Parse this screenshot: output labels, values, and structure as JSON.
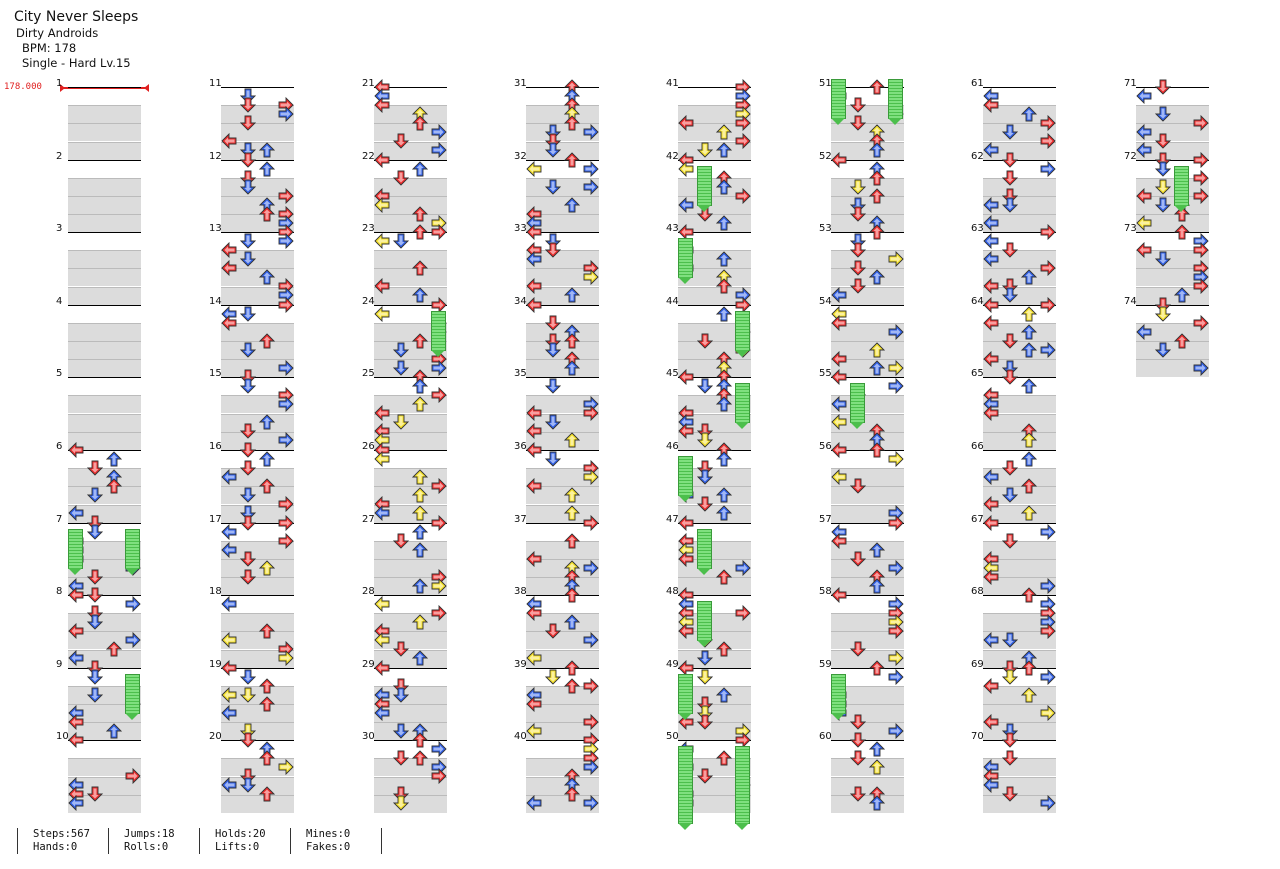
{
  "song": {
    "title": "City Never Sleeps",
    "artist": "Dirty Androids",
    "bpm_label": "BPM: 178",
    "difficulty_label": "Single - Hard  Lv.15"
  },
  "bpm_marker": "178.000",
  "colors": {
    "quarter": "#ee2b2b",
    "eighth": "#2f5fe8",
    "sixteenth": "#f5e12b",
    "hold": "#5fcf5f"
  },
  "measures": [
    "1",
    "2",
    "3",
    "4",
    "5",
    "6",
    "7",
    "8",
    "9",
    "10",
    "11",
    "12",
    "13",
    "14",
    "15",
    "16",
    "17",
    "18",
    "19",
    "20",
    "21",
    "22",
    "23",
    "24",
    "25",
    "26",
    "27",
    "28",
    "29",
    "30",
    "31",
    "32",
    "33",
    "34",
    "35",
    "36",
    "37",
    "38",
    "39",
    "40",
    "41",
    "42",
    "43",
    "44",
    "45",
    "46",
    "47",
    "48",
    "49",
    "50",
    "51",
    "52",
    "53",
    "54",
    "55",
    "56",
    "57",
    "58",
    "59",
    "60",
    "61",
    "62",
    "63",
    "64",
    "65",
    "66",
    "67",
    "68",
    "69",
    "70",
    "71",
    "72",
    "73",
    "74"
  ],
  "stats": {
    "steps": "Steps:567",
    "hands": "Hands:0",
    "jumps": "Jumps:18",
    "rolls": "Rolls:0",
    "holds": "Holds:20",
    "lifts": "Lifts:0",
    "mines": "Mines:0",
    "fakes": "Fakes:0"
  }
}
